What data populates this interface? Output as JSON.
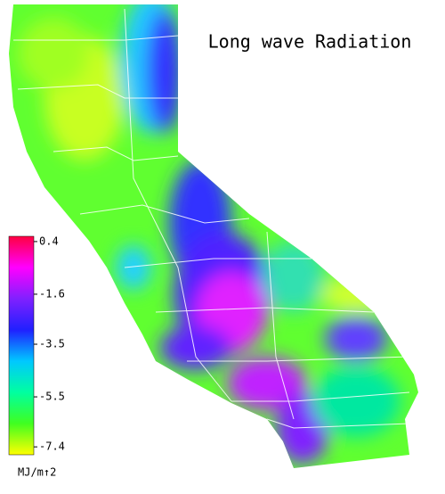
{
  "title": "Long wave Radiation",
  "colorbar": {
    "label": "MJ/m↑2",
    "clim": [
      -7.7,
      0.6
    ],
    "ticks": [
      0.4,
      -1.6,
      -3.5,
      -5.5,
      -7.4
    ],
    "colors": [
      "#ffff00",
      "#40ff20",
      "#00ffa0",
      "#00c8ff",
      "#2020ff",
      "#8020ff",
      "#ff00ff",
      "#ff0040"
    ]
  }
}
